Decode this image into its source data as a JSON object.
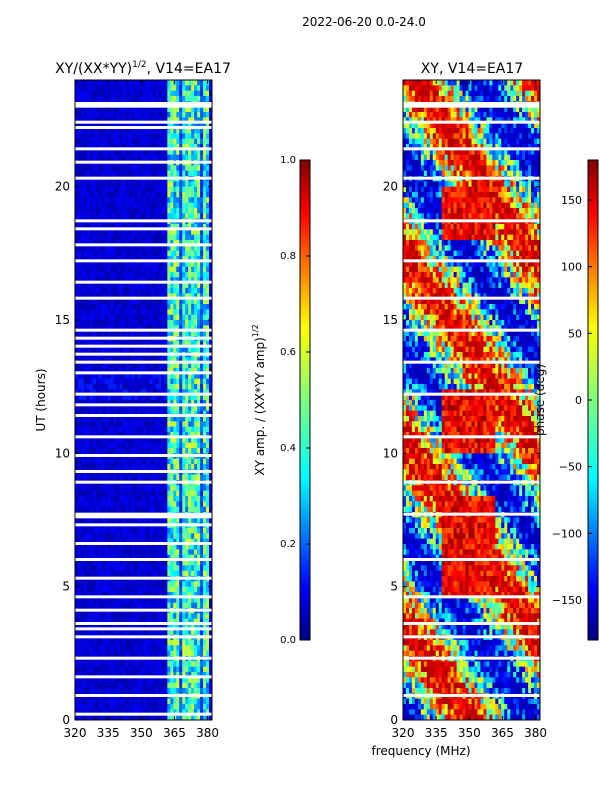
{
  "figure": {
    "suptitle": "2022-06-20 0.0-24.0",
    "xlabel": "frequency (MHz)"
  },
  "chart_data": [
    {
      "type": "heatmap",
      "title_main": "XY/(XX*YY)",
      "title_sup": "1/2",
      "title_tail": ", V14=EA17",
      "xlabel": "",
      "ylabel": "UT (hours)",
      "xlim": [
        320,
        382
      ],
      "ylim": [
        0,
        24
      ],
      "xticks": [
        320,
        335,
        350,
        365,
        380
      ],
      "yticks": [
        0,
        5,
        10,
        15,
        20
      ],
      "data_description": "Mostly low amplitude (~0.05-0.15, dark blue) below 360 MHz; broadband RFI stripes between ~360 and 380 MHz with amplitudes ~0.3-0.6; white rows are flagged/missing integrations.",
      "flagged_hours": [
        0.2,
        0.9,
        1.6,
        2.3,
        3.1,
        3.4,
        3.6,
        4.1,
        4.6,
        5.3,
        6.0,
        6.6,
        7.3,
        7.6,
        7.7,
        8.9,
        9.3,
        9.9,
        10.6,
        11.4,
        11.8,
        12.2,
        13.0,
        13.4,
        13.7,
        14.0,
        14.3,
        14.6,
        15.8,
        16.4,
        17.2,
        17.8,
        18.4,
        18.7,
        20.3,
        20.9,
        21.4,
        22.2,
        22.4,
        23.0,
        23.1
      ],
      "colorbar": {
        "label_main": "XY amp. / (XX*YY amp)",
        "label_sup": "1/2",
        "range": [
          0.0,
          1.0
        ],
        "ticks": [
          "0.0",
          "0.2",
          "0.4",
          "0.6",
          "0.8",
          "1.0"
        ]
      }
    },
    {
      "type": "heatmap",
      "title": "XY, V14=EA17",
      "xlabel": "frequency (MHz)",
      "ylabel": "",
      "xlim": [
        320,
        382
      ],
      "ylim": [
        0,
        24
      ],
      "xticks": [
        320,
        335,
        350,
        365,
        380
      ],
      "yticks": [
        0,
        5,
        10,
        15,
        20
      ],
      "data_description": "XY phase in degrees spanning -180 to 180; mixed structure, predominantly positive phase (~100-180, red) around 340-360 MHz at 5-8 h and 10-12 h; white rows are flagged integrations.",
      "flagged_hours": [
        0.9,
        2.3,
        3.1,
        3.6,
        4.6,
        6.0,
        7.7,
        8.9,
        10.6,
        12.2,
        13.4,
        14.6,
        15.8,
        17.2,
        18.7,
        20.3,
        21.4,
        22.4,
        23.0,
        23.1
      ],
      "colorbar": {
        "label": "phase (deg)",
        "range": [
          -180,
          180
        ],
        "ticks": [
          "150",
          "100",
          "50",
          "0",
          "−50",
          "−100",
          "−150"
        ],
        "tick_values": [
          150,
          100,
          50,
          0,
          -50,
          -100,
          -150
        ]
      }
    }
  ],
  "colors": {
    "jet": [
      "#00007f",
      "#0000ff",
      "#007fff",
      "#00ffff",
      "#7fff7f",
      "#ffff00",
      "#ff7f00",
      "#ff0000",
      "#7f0000"
    ]
  }
}
